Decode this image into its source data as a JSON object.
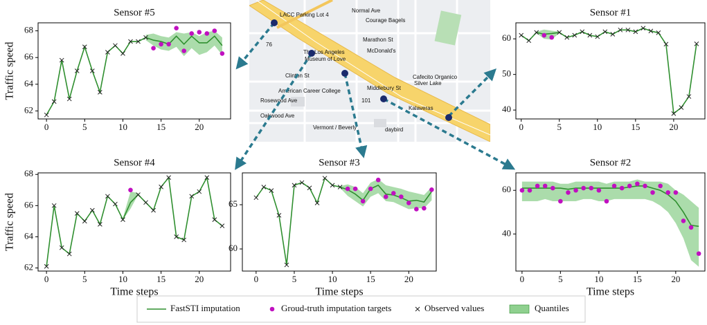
{
  "chart_data": [
    {
      "type": "line",
      "title": "Sensor #5",
      "ylabel": "Traffic speed",
      "x": [
        0,
        1,
        2,
        3,
        4,
        5,
        6,
        7,
        8,
        9,
        10,
        11,
        12,
        13,
        14,
        15,
        16,
        17,
        18,
        19,
        20,
        21,
        22,
        23
      ],
      "line": [
        61.7,
        62.7,
        65.8,
        62.9,
        65.0,
        66.8,
        65.0,
        63.4,
        66.4,
        66.9,
        66.3,
        67.2,
        67.2,
        67.5,
        67.3,
        67.2,
        67.0,
        67.6,
        67.0,
        67.6,
        67.1,
        67.1,
        67.6,
        66.9
      ],
      "observed": [
        61.7,
        62.7,
        65.8,
        62.9,
        65.0,
        66.8,
        65.0,
        63.4,
        66.4,
        66.9,
        66.3,
        67.2,
        67.2,
        67.5,
        null,
        null,
        null,
        null,
        null,
        null,
        null,
        null,
        null,
        null
      ],
      "targets": [
        null,
        null,
        null,
        null,
        null,
        null,
        null,
        null,
        null,
        null,
        null,
        null,
        null,
        null,
        66.7,
        67.0,
        67.0,
        68.2,
        66.5,
        67.8,
        67.9,
        67.8,
        68.0,
        66.3
      ],
      "quantile_low": [
        null,
        null,
        null,
        null,
        null,
        null,
        null,
        null,
        null,
        null,
        null,
        null,
        null,
        67.3,
        66.9,
        66.6,
        66.5,
        66.8,
        66.1,
        66.7,
        66.2,
        66.4,
        66.9,
        66.2
      ],
      "quantile_high": [
        null,
        null,
        null,
        null,
        null,
        null,
        null,
        null,
        null,
        null,
        null,
        null,
        null,
        67.7,
        67.8,
        67.6,
        67.5,
        67.9,
        67.8,
        67.9,
        67.6,
        67.9,
        68.0,
        67.5
      ],
      "xlim": [
        -1.1,
        24.1
      ],
      "xticks": [
        0,
        5,
        10,
        15,
        20
      ],
      "ylim": [
        61.4,
        68.6
      ],
      "yticks": [
        62,
        64,
        66,
        68
      ]
    },
    {
      "type": "line",
      "title": "Sensor #1",
      "x": [
        0,
        1,
        2,
        3,
        4,
        5,
        6,
        7,
        8,
        9,
        10,
        11,
        12,
        13,
        14,
        15,
        16,
        17,
        18,
        19,
        20,
        21,
        22,
        23
      ],
      "line": [
        61.0,
        59.5,
        61.8,
        61.3,
        61.5,
        61.8,
        60.4,
        61.0,
        62.0,
        61.0,
        60.6,
        62.0,
        61.3,
        62.5,
        62.5,
        62.0,
        63.0,
        62.2,
        61.7,
        58.5,
        39.0,
        40.7,
        43.8,
        58.6
      ],
      "observed": [
        61.0,
        59.5,
        61.8,
        null,
        null,
        61.8,
        60.4,
        61.0,
        62.0,
        61.0,
        60.6,
        62.0,
        61.3,
        62.5,
        62.5,
        62.0,
        63.0,
        62.2,
        61.7,
        58.5,
        39.0,
        40.7,
        43.8,
        58.6
      ],
      "targets": [
        null,
        null,
        null,
        61.0,
        60.4,
        null,
        null,
        null,
        null,
        null,
        null,
        null,
        null,
        null,
        null,
        null,
        null,
        null,
        null,
        null,
        null,
        null,
        null,
        null
      ],
      "quantile_low": [
        null,
        null,
        61.6,
        60.0,
        59.8,
        61.6,
        null,
        null,
        null,
        null,
        null,
        null,
        null,
        null,
        null,
        null,
        null,
        null,
        null,
        null,
        null,
        null,
        null,
        null
      ],
      "quantile_high": [
        null,
        null,
        62.0,
        62.6,
        62.3,
        62.0,
        null,
        null,
        null,
        null,
        null,
        null,
        null,
        null,
        null,
        null,
        null,
        null,
        null,
        null,
        null,
        null,
        null,
        null
      ],
      "xlim": [
        -0.7,
        24.1
      ],
      "xticks": [
        0,
        5,
        10,
        15,
        20
      ],
      "ylim": [
        37.5,
        64.5
      ],
      "yticks": [
        40,
        50,
        60
      ]
    },
    {
      "type": "line",
      "title": "Sensor #4",
      "ylabel": "Traffic speed",
      "xlabel": "Time steps",
      "x": [
        0,
        1,
        2,
        3,
        4,
        5,
        6,
        7,
        8,
        9,
        10,
        11,
        12,
        13,
        14,
        15,
        16,
        17,
        18,
        19,
        20,
        21,
        22,
        23
      ],
      "line": [
        62.1,
        66.0,
        63.3,
        62.9,
        65.5,
        65.0,
        65.7,
        64.8,
        66.6,
        66.1,
        65.1,
        66.2,
        66.7,
        66.2,
        65.7,
        67.2,
        67.8,
        64.0,
        63.8,
        66.6,
        66.9,
        67.8,
        65.1,
        64.7
      ],
      "observed": [
        62.1,
        66.0,
        63.3,
        62.9,
        65.5,
        65.0,
        65.7,
        64.8,
        66.6,
        66.1,
        65.1,
        null,
        66.7,
        66.2,
        65.7,
        67.2,
        67.8,
        64.0,
        63.8,
        66.6,
        66.9,
        67.8,
        65.1,
        64.7
      ],
      "targets": [
        null,
        null,
        null,
        null,
        null,
        null,
        null,
        null,
        null,
        null,
        null,
        67.0,
        null,
        null,
        null,
        null,
        null,
        null,
        null,
        null,
        null,
        null,
        null,
        null
      ],
      "quantile_low": [
        null,
        null,
        null,
        null,
        null,
        null,
        null,
        null,
        null,
        null,
        65.1,
        65.8,
        66.7,
        null,
        null,
        null,
        null,
        null,
        null,
        null,
        null,
        null,
        null,
        null
      ],
      "quantile_high": [
        null,
        null,
        null,
        null,
        null,
        null,
        null,
        null,
        null,
        null,
        65.2,
        66.9,
        66.8,
        null,
        null,
        null,
        null,
        null,
        null,
        null,
        null,
        null,
        null,
        null
      ],
      "xlim": [
        -1.1,
        24.1
      ],
      "xticks": [
        0,
        5,
        10,
        15,
        20
      ],
      "ylim": [
        61.8,
        68.1
      ],
      "yticks": [
        62,
        64,
        66,
        68
      ]
    },
    {
      "type": "line",
      "title": "Sensor #3",
      "xlabel": "Time steps",
      "x": [
        0,
        1,
        2,
        3,
        4,
        5,
        6,
        7,
        8,
        9,
        10,
        11,
        12,
        13,
        14,
        15,
        16,
        17,
        18,
        19,
        20,
        21,
        22,
        23
      ],
      "line": [
        65.8,
        67.0,
        66.6,
        63.8,
        58.2,
        67.2,
        67.5,
        66.9,
        65.2,
        68.0,
        67.2,
        67.0,
        66.7,
        66.2,
        65.5,
        66.8,
        67.2,
        66.2,
        66.1,
        65.8,
        65.4,
        65.5,
        65.3,
        66.5
      ],
      "observed": [
        65.8,
        67.0,
        66.6,
        63.8,
        58.2,
        67.2,
        67.5,
        66.9,
        65.2,
        68.0,
        67.2,
        67.0,
        null,
        null,
        null,
        null,
        null,
        null,
        null,
        null,
        null,
        null,
        null,
        null
      ],
      "targets": [
        null,
        null,
        null,
        null,
        null,
        null,
        null,
        null,
        null,
        null,
        null,
        null,
        66.8,
        66.8,
        65.4,
        66.8,
        67.8,
        65.9,
        66.3,
        65.9,
        65.2,
        64.5,
        64.6,
        66.7
      ],
      "quantile_low": [
        null,
        null,
        null,
        null,
        null,
        null,
        null,
        null,
        null,
        null,
        null,
        66.9,
        66.0,
        65.4,
        64.8,
        65.9,
        66.3,
        65.4,
        65.3,
        64.9,
        64.5,
        64.6,
        64.6,
        65.5
      ],
      "quantile_high": [
        null,
        null,
        null,
        null,
        null,
        null,
        null,
        null,
        null,
        null,
        null,
        67.1,
        67.3,
        67.0,
        66.3,
        67.5,
        67.9,
        67.2,
        67.0,
        66.8,
        66.5,
        66.3,
        66.1,
        67.0
      ],
      "xlim": [
        -1.8,
        23.6
      ],
      "xticks": [
        0,
        5,
        10,
        15,
        20
      ],
      "ylim": [
        57.5,
        68.6
      ],
      "yticks": [
        60,
        65
      ]
    },
    {
      "type": "line",
      "title": "Sensor #2",
      "xlabel": "Time steps",
      "x": [
        0,
        1,
        2,
        3,
        4,
        5,
        6,
        7,
        8,
        9,
        10,
        11,
        12,
        13,
        14,
        15,
        16,
        17,
        18,
        19,
        20,
        21,
        22,
        23
      ],
      "line": [
        61,
        61,
        61,
        61,
        61,
        61,
        60.5,
        61,
        61,
        61,
        61,
        61,
        61,
        61,
        61.5,
        62,
        62,
        61,
        60,
        58,
        55,
        50,
        44,
        43.5
      ],
      "targets": [
        60,
        60,
        62,
        62,
        61,
        55,
        59,
        60,
        61,
        61,
        60,
        55,
        62,
        61,
        62,
        63,
        62,
        59,
        62,
        59,
        59,
        46,
        43,
        31
      ],
      "quantile_low": [
        55,
        55,
        55,
        56,
        55,
        55,
        55,
        55,
        56,
        56,
        55,
        55,
        56,
        56,
        56,
        56,
        56,
        55,
        53,
        50,
        45,
        38,
        28,
        25
      ],
      "quantile_high": [
        64,
        64,
        64,
        64,
        64,
        63,
        63,
        64,
        64,
        64,
        64,
        63,
        64,
        64,
        64,
        65,
        64,
        64,
        64,
        63,
        60,
        58,
        55,
        52
      ],
      "xlim": [
        -0.8,
        23.8
      ],
      "xticks": [
        0,
        5,
        10,
        15,
        20
      ],
      "ylim": [
        23,
        68
      ],
      "yticks": [
        40,
        60
      ]
    }
  ],
  "legend": {
    "line": {
      "label": "FastSTI imputation",
      "color": "#2f8f2f"
    },
    "targets": {
      "label": "Groud-truth imputation targets",
      "color": "#c010c0"
    },
    "observed": {
      "label": "Observed values",
      "color": "#222222"
    },
    "quantiles": {
      "label": "Quantiles",
      "color": "#8fd08f"
    }
  },
  "map": {
    "labels": [
      "Normal Ave",
      "LACC Parking Lot 4",
      "Courage Bagels",
      "Marathon St",
      "McDonald's",
      "The Los Angeles",
      "Museum of Love",
      "Clinton St",
      "American Career College",
      "Middlebury St",
      "Cafecito Organico",
      "Silver Lake",
      "Rosewood Ave",
      "Oakwood Ave",
      "Kalaveras",
      "Vermont / Beverly",
      "daybird",
      "101",
      "76"
    ]
  }
}
